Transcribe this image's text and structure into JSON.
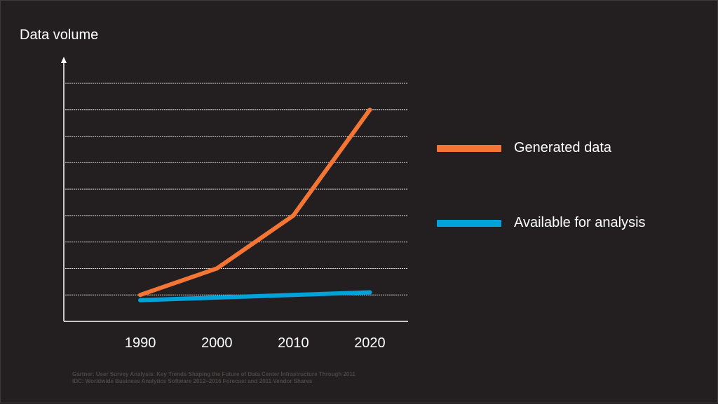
{
  "chart_data": {
    "type": "line",
    "title": "",
    "ylabel": "Data volume",
    "xlabel": "",
    "x": [
      1990,
      2000,
      2010,
      2020
    ],
    "xlim": [
      1980,
      2025
    ],
    "ylim": [
      0,
      9
    ],
    "y_gridlines": [
      1,
      2,
      3,
      4,
      5,
      6,
      7,
      8,
      9
    ],
    "grid": true,
    "legend_position": "right",
    "series": [
      {
        "name": "Generated data",
        "values": [
          1.0,
          2.0,
          4.0,
          8.0
        ],
        "color": "#f47534"
      },
      {
        "name": "Available for analysis",
        "values": [
          0.8,
          0.9,
          1.0,
          1.1
        ],
        "color": "#00a3d9"
      }
    ]
  },
  "sources": [
    "Gartner: User Survey Analysis: Key Trends Shaping the Future of Data Center Infrastructure Through 2011",
    "IDC: Worldwide Business Analytics Software 2012–2016 Forecast and 2011 Vendor Shares"
  ]
}
